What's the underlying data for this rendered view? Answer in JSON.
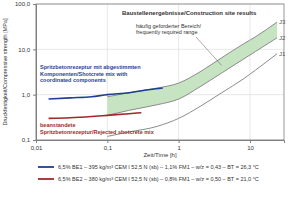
{
  "chart_data": {
    "type": "line",
    "title": "Baustellenergebnisse/Construction site results",
    "x_label": "Zeit/Time [h]",
    "y_label": "Druckfestigkeit/Compressive strength [MPa]",
    "log": true,
    "grid": true,
    "legend": "bottom",
    "xlim": [
      0.01,
      30
    ],
    "xticks": [
      {
        "value": 0.01,
        "label": "0,01"
      },
      {
        "value": 0.1,
        "label": "0,1"
      },
      1,
      10
    ],
    "ylim": [
      0.1,
      100
    ],
    "yticks": [
      {
        "value": 0.1,
        "label": "0,1"
      },
      {
        "value": 1,
        "label": "1,0"
      },
      {
        "value": 10,
        "label": "10,0"
      },
      {
        "value": 100,
        "label": "100,0"
      }
    ],
    "band": {
      "label": [
        "häufig geforderter Bereich/",
        "frequently required range"
      ],
      "color": "#c6e3c2",
      "x": [
        0.1,
        0.2,
        0.5,
        1,
        2,
        4,
        8,
        12,
        24
      ],
      "lower": [
        0.35,
        0.45,
        0.6,
        0.8,
        1.5,
        3,
        6,
        9,
        18
      ],
      "upper": [
        0.9,
        1.1,
        1.4,
        1.8,
        3.2,
        6.5,
        13,
        19,
        40
      ]
    },
    "series": [
      {
        "name": "J1",
        "type": "reference",
        "color": "#8c8c8c",
        "x": [
          0.1,
          0.2,
          0.5,
          1,
          2,
          4,
          8,
          12,
          24
        ],
        "values": [
          0.12,
          0.15,
          0.2,
          0.3,
          0.55,
          1.1,
          2.2,
          3.5,
          8
        ]
      },
      {
        "name": "J2",
        "type": "reference",
        "color": "#8c8c8c",
        "x": [
          0.1,
          0.2,
          0.5,
          1,
          2,
          4,
          8,
          12,
          24
        ],
        "values": [
          0.35,
          0.45,
          0.6,
          0.8,
          1.5,
          3,
          6,
          9,
          18
        ]
      },
      {
        "name": "J3",
        "type": "reference",
        "color": "#8c8c8c",
        "x": [
          0.1,
          0.2,
          0.5,
          1,
          2,
          4,
          8,
          12,
          24
        ],
        "values": [
          0.9,
          1.1,
          1.4,
          1.8,
          3.2,
          6.5,
          13,
          19,
          40
        ]
      },
      {
        "name": "6,5% BE1 – 395 kg/m³ CEM I 52,5 N (sb) – 1,1% FM1 – w/z = 0,43 – BT = 26,3 °C",
        "type": "line",
        "color": "#1f3f95",
        "annotation": [
          "Spritzbetonrezeptur mit abgestimmten",
          "Komponenten/Shotcrete mix with",
          "coordinated components"
        ],
        "x": [
          0.015,
          0.03,
          0.06,
          0.1,
          0.2,
          0.4,
          0.6
        ],
        "values": [
          0.8,
          0.85,
          0.9,
          1.0,
          1.1,
          1.3,
          1.4
        ]
      },
      {
        "name": "6,5% BE2 – 380 kg/m³ CEM I 52,5 N (sb) – 0,8% FM1 – w/z = 0,50 – BT = 21,0 °C",
        "type": "line",
        "color": "#a3282b",
        "annotation": [
          "beanstandete",
          "Spritzbetonrezeptur/Rejected shotcrete mix"
        ],
        "x": [
          0.015,
          0.03,
          0.06,
          0.1,
          0.2,
          0.3
        ],
        "values": [
          0.3,
          0.31,
          0.33,
          0.35,
          0.38,
          0.4
        ]
      }
    ]
  }
}
